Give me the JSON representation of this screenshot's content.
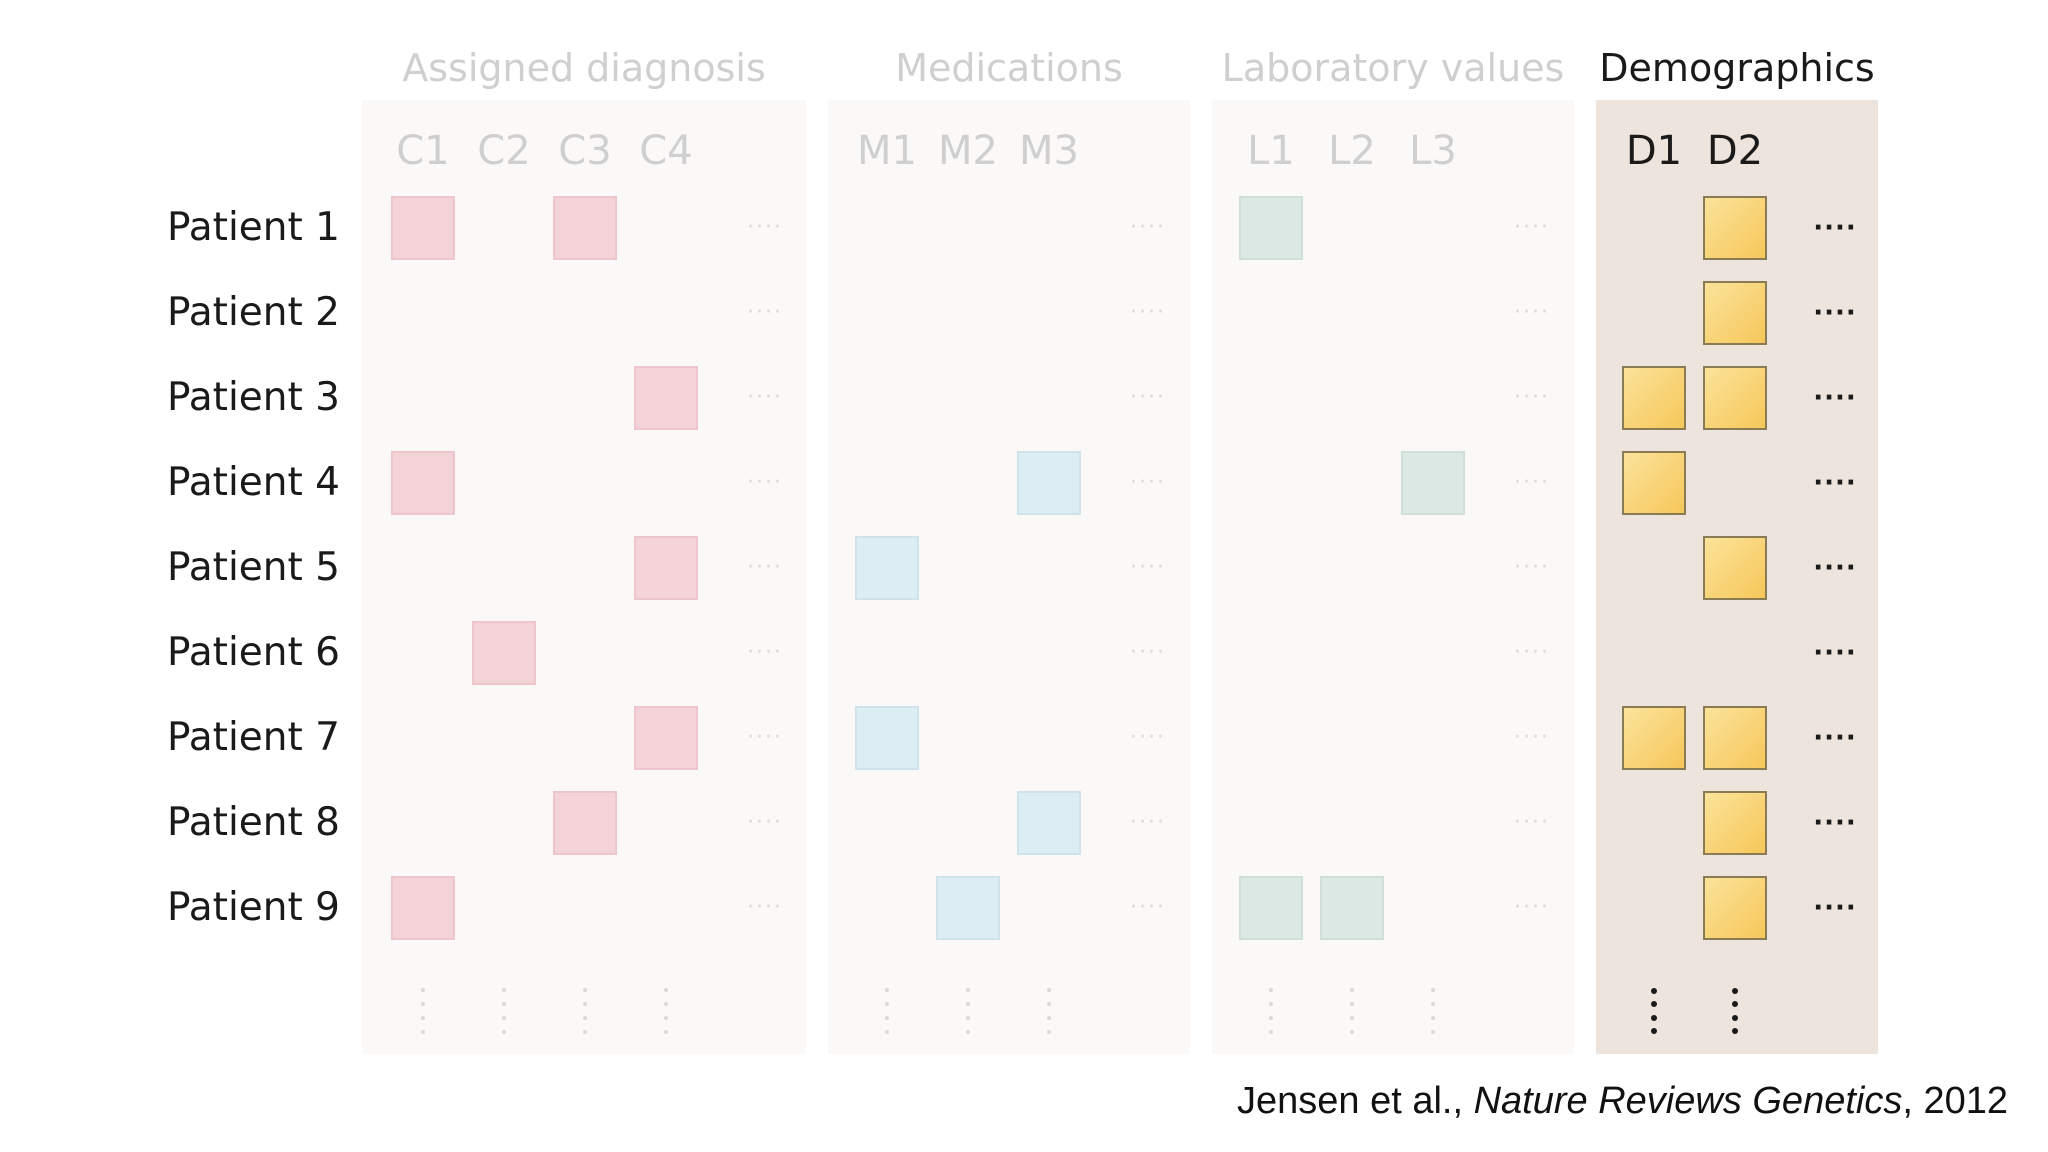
{
  "groups": [
    {
      "title": "Assigned diagnosis",
      "active": false,
      "kind": "diag",
      "columns": [
        "C1",
        "C2",
        "C3",
        "C4"
      ]
    },
    {
      "title": "Medications",
      "active": false,
      "kind": "med",
      "columns": [
        "M1",
        "M2",
        "M3"
      ]
    },
    {
      "title": "Laboratory values",
      "active": false,
      "kind": "lab",
      "columns": [
        "L1",
        "L2",
        "L3"
      ]
    },
    {
      "title": "Demographics",
      "active": true,
      "kind": "demo",
      "columns": [
        "D1",
        "D2"
      ]
    }
  ],
  "patients": [
    {
      "label": "Patient 1",
      "cells": {
        "C1": 1,
        "C3": 1,
        "L1": 1,
        "D2": 1
      }
    },
    {
      "label": "Patient 2",
      "cells": {
        "D2": 1
      }
    },
    {
      "label": "Patient 3",
      "cells": {
        "C4": 1,
        "D1": 1,
        "D2": 1
      }
    },
    {
      "label": "Patient 4",
      "cells": {
        "C1": 1,
        "M3": 1,
        "L3": 1,
        "D1": 1
      }
    },
    {
      "label": "Patient 5",
      "cells": {
        "C4": 1,
        "M1": 1,
        "D2": 1
      }
    },
    {
      "label": "Patient 6",
      "cells": {
        "C2": 1
      }
    },
    {
      "label": "Patient 7",
      "cells": {
        "C4": 1,
        "M1": 1,
        "D1": 1,
        "D2": 1
      }
    },
    {
      "label": "Patient 8",
      "cells": {
        "C3": 1,
        "M3": 1,
        "D2": 1
      }
    },
    {
      "label": "Patient 9",
      "cells": {
        "C1": 1,
        "M2": 1,
        "L1": 1,
        "L2": 1,
        "D2": 1
      }
    }
  ],
  "citation": {
    "authors": "Jensen et al., ",
    "journal": "Nature Reviews Genetics",
    "year": ", 2012"
  },
  "colors": {
    "diagnosis_cell": "#f3d3d8",
    "medication_cell": "#dceef3",
    "lab_cell": "#dde9e4",
    "demographic_cell": "#f6c759",
    "active_panel": "#ece4dd",
    "inactive_panel": "#fbf8f8"
  }
}
